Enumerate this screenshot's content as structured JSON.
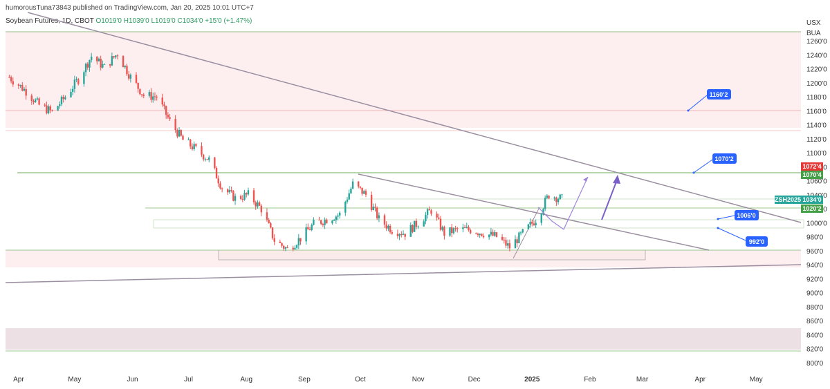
{
  "header": {
    "published": "humorousTuna73843 published on TradingView.com, Jan 20, 2025 10:01 UTC+7"
  },
  "legend": {
    "symbol": "Soybean Futures, 1D, CBOT",
    "open": "O1019'0",
    "high": "H1039'0",
    "low": "L1019'0",
    "close": "C1034'0",
    "change": "+15'0 (+1.47%)"
  },
  "axis": {
    "currency": "USX",
    "unit": "BUA",
    "y_ticks": [
      "1260'0",
      "1240'0",
      "1220'0",
      "1200'0",
      "1180'0",
      "1160'0",
      "1140'0",
      "1120'0",
      "1100'0",
      "1080'0",
      "1060'0",
      "1040'0",
      "1020'0",
      "1000'0",
      "980'0",
      "960'0",
      "940'0",
      "920'0",
      "900'0",
      "880'0",
      "860'0",
      "840'0",
      "820'0",
      "800'0"
    ],
    "x_ticks": [
      "Apr",
      "May",
      "Jun",
      "Jul",
      "Aug",
      "Sep",
      "Oct",
      "Nov",
      "Dec",
      "2025",
      "Feb",
      "Mar",
      "Apr",
      "May"
    ]
  },
  "price_tags": {
    "red_tag": "1072'4",
    "green_tag": "1070'4",
    "symbol_tag": "ZSH2025",
    "last_tag": "1034'0",
    "green_tag2": "1020'2"
  },
  "callouts": [
    {
      "label": "1160'2"
    },
    {
      "label": "1070'2"
    },
    {
      "label": "1006'0"
    },
    {
      "label": "992'0"
    }
  ],
  "colors": {
    "up": "#26a69a",
    "down": "#ef5350",
    "trendline": "#9a8fa0",
    "arrow": "#7a5fc8",
    "callout_bg": "#2962ff",
    "level_red": "#f3b3b3",
    "level_green": "#a6d49a"
  },
  "chart_data": {
    "type": "candlestick",
    "title": "Soybean Futures, 1D, CBOT",
    "ylabel": "USX",
    "ylim": [
      795,
      1275
    ],
    "x_range": [
      "2024-03-25",
      "2025-05-25"
    ],
    "closes": [
      {
        "date": "2024-03-27",
        "value": 1208
      },
      {
        "date": "2024-04-05",
        "value": 1188
      },
      {
        "date": "2024-04-12",
        "value": 1168
      },
      {
        "date": "2024-04-19",
        "value": 1158
      },
      {
        "date": "2024-04-26",
        "value": 1180
      },
      {
        "date": "2024-05-03",
        "value": 1205
      },
      {
        "date": "2024-05-10",
        "value": 1238
      },
      {
        "date": "2024-05-17",
        "value": 1222
      },
      {
        "date": "2024-05-24",
        "value": 1242
      },
      {
        "date": "2024-05-31",
        "value": 1208
      },
      {
        "date": "2024-06-07",
        "value": 1182
      },
      {
        "date": "2024-06-14",
        "value": 1180
      },
      {
        "date": "2024-06-21",
        "value": 1145
      },
      {
        "date": "2024-06-28",
        "value": 1118
      },
      {
        "date": "2024-07-05",
        "value": 1105
      },
      {
        "date": "2024-07-12",
        "value": 1090
      },
      {
        "date": "2024-07-19",
        "value": 1050
      },
      {
        "date": "2024-07-26",
        "value": 1035
      },
      {
        "date": "2024-08-02",
        "value": 1040
      },
      {
        "date": "2024-08-09",
        "value": 1020
      },
      {
        "date": "2024-08-16",
        "value": 975
      },
      {
        "date": "2024-08-23",
        "value": 962
      },
      {
        "date": "2024-08-30",
        "value": 978
      },
      {
        "date": "2024-09-06",
        "value": 998
      },
      {
        "date": "2024-09-13",
        "value": 1005
      },
      {
        "date": "2024-09-20",
        "value": 1012
      },
      {
        "date": "2024-09-27",
        "value": 1055
      },
      {
        "date": "2024-10-04",
        "value": 1040
      },
      {
        "date": "2024-10-11",
        "value": 1005
      },
      {
        "date": "2024-10-18",
        "value": 990
      },
      {
        "date": "2024-10-25",
        "value": 985
      },
      {
        "date": "2024-11-01",
        "value": 1000
      },
      {
        "date": "2024-11-08",
        "value": 1018
      },
      {
        "date": "2024-11-15",
        "value": 985
      },
      {
        "date": "2024-11-22",
        "value": 990
      },
      {
        "date": "2024-11-29",
        "value": 990
      },
      {
        "date": "2024-12-06",
        "value": 985
      },
      {
        "date": "2024-12-13",
        "value": 980
      },
      {
        "date": "2024-12-20",
        "value": 965
      },
      {
        "date": "2024-12-27",
        "value": 985
      },
      {
        "date": "2025-01-03",
        "value": 1005
      },
      {
        "date": "2025-01-10",
        "value": 1040
      },
      {
        "date": "2025-01-17",
        "value": 1034
      }
    ]
  }
}
